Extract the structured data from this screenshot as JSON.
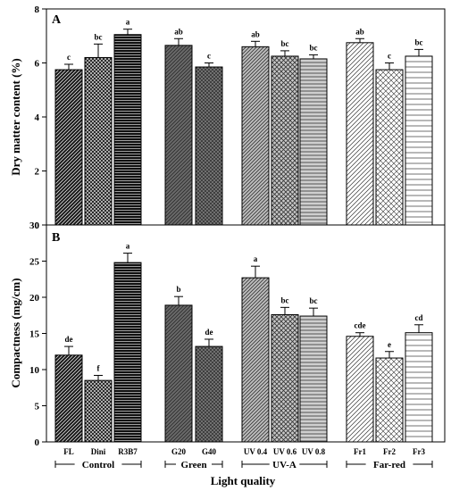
{
  "xlabel": "Light quality",
  "groups": [
    {
      "label": "Control",
      "members": [
        "FL",
        "Dini",
        "R3B7"
      ]
    },
    {
      "label": "Green",
      "members": [
        "G20",
        "G40"
      ]
    },
    {
      "label": "UV-A",
      "members": [
        "UV 0.4",
        "UV 0.6",
        "UV 0.8"
      ]
    },
    {
      "label": "Far-red",
      "members": [
        "Fr1",
        "Fr2",
        "Fr3"
      ]
    }
  ],
  "chart_data": [
    {
      "type": "bar",
      "panel": "A",
      "ylabel": "Dry matter content (%)",
      "ylim": [
        0,
        8
      ],
      "yticks": [
        0,
        2,
        4,
        6,
        8
      ],
      "categories": [
        "FL",
        "Dini",
        "R3B7",
        "G20",
        "G40",
        "UV 0.4",
        "UV 0.6",
        "UV 0.8",
        "Fr1",
        "Fr2",
        "Fr3"
      ],
      "values": [
        5.75,
        6.2,
        7.05,
        6.65,
        5.85,
        6.6,
        6.25,
        6.15,
        6.75,
        5.75,
        6.25
      ],
      "errors": [
        0.2,
        0.5,
        0.2,
        0.25,
        0.15,
        0.2,
        0.2,
        0.15,
        0.15,
        0.25,
        0.25
      ],
      "letters": [
        "c",
        "bc",
        "a",
        "ab",
        "c",
        "ab",
        "bc",
        "bc",
        "ab",
        "c",
        "bc"
      ]
    },
    {
      "type": "bar",
      "panel": "B",
      "ylabel": "Compactness (mg/cm)",
      "ylim": [
        0,
        30
      ],
      "yticks": [
        0,
        5,
        10,
        15,
        20,
        25,
        30
      ],
      "categories": [
        "FL",
        "Dini",
        "R3B7",
        "G20",
        "G40",
        "UV 0.4",
        "UV 0.6",
        "UV 0.8",
        "Fr1",
        "Fr2",
        "Fr3"
      ],
      "values": [
        12,
        8.5,
        24.8,
        18.9,
        13.2,
        22.7,
        17.6,
        17.4,
        14.6,
        11.6,
        15.1
      ],
      "errors": [
        1.2,
        0.7,
        1.3,
        1.2,
        1.0,
        1.6,
        1.0,
        1.1,
        0.5,
        0.9,
        1.1
      ],
      "letters": [
        "de",
        "f",
        "a",
        "b",
        "de",
        "a",
        "bc",
        "bc",
        "cde",
        "e",
        "cd"
      ]
    }
  ]
}
